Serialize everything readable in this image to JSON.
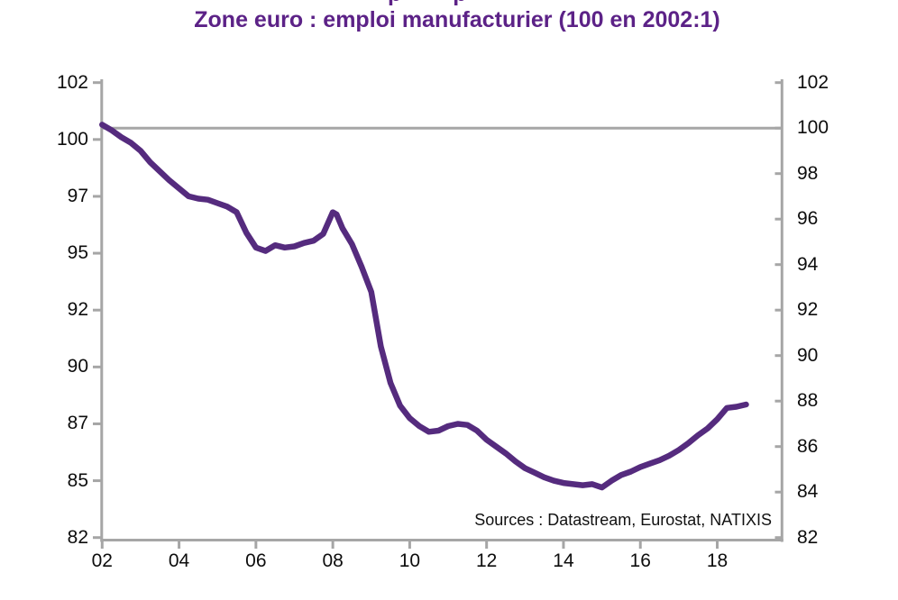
{
  "page": {
    "title": "Zone euro : emploi manufacturier (100 en 2002:1)",
    "clipped_title_fragment": "p p",
    "sources_note": "Sources : Datastream, Eurostat, NATIXIS"
  },
  "colors": {
    "title": "#5c2287",
    "line": "#552b7e",
    "axis": "#a6a6a6",
    "reference_line": "#a6a6a6",
    "tick_label": "#0d0d0d"
  },
  "chart_data": {
    "type": "line",
    "title": "Zone euro : emploi manufacturier (100 en 2002:1)",
    "xlabel": "",
    "ylabel": "",
    "xlim": [
      2002,
      2019.7
    ],
    "ylim": [
      82,
      102
    ],
    "grid": false,
    "legend": "none",
    "reference_line_y": 100,
    "x_axis": {
      "tick_years": [
        2002,
        2004,
        2006,
        2008,
        2010,
        2012,
        2014,
        2016,
        2018
      ],
      "tick_labels": [
        "02",
        "04",
        "06",
        "08",
        "10",
        "12",
        "14",
        "16",
        "18"
      ]
    },
    "left_axis": {
      "tick_labels": [
        "102",
        "100",
        "97",
        "95",
        "92",
        "90",
        "87",
        "85",
        "82"
      ],
      "tick_positions": [
        102,
        99.5,
        97,
        94.5,
        92,
        89.5,
        87,
        84.5,
        82
      ]
    },
    "right_axis": {
      "tick_labels": [
        "102",
        "100",
        "98",
        "96",
        "94",
        "92",
        "90",
        "88",
        "86",
        "84",
        "82"
      ],
      "tick_positions": [
        102,
        100,
        98,
        96,
        94,
        92,
        90,
        88,
        86,
        84,
        82
      ]
    },
    "series": [
      {
        "name": "Zone euro : emploi manufacturier (100 en 2002:1)",
        "points": [
          [
            2002.0,
            100.15
          ],
          [
            2002.25,
            99.9
          ],
          [
            2002.5,
            99.6
          ],
          [
            2002.75,
            99.35
          ],
          [
            2003.0,
            99.0
          ],
          [
            2003.25,
            98.5
          ],
          [
            2003.5,
            98.1
          ],
          [
            2003.75,
            97.7
          ],
          [
            2004.0,
            97.35
          ],
          [
            2004.25,
            97.0
          ],
          [
            2004.5,
            96.9
          ],
          [
            2004.75,
            96.85
          ],
          [
            2005.0,
            96.7
          ],
          [
            2005.25,
            96.55
          ],
          [
            2005.5,
            96.3
          ],
          [
            2005.75,
            95.4
          ],
          [
            2006.0,
            94.75
          ],
          [
            2006.25,
            94.6
          ],
          [
            2006.5,
            94.85
          ],
          [
            2006.75,
            94.75
          ],
          [
            2007.0,
            94.8
          ],
          [
            2007.25,
            94.95
          ],
          [
            2007.5,
            95.05
          ],
          [
            2007.75,
            95.35
          ],
          [
            2008.0,
            96.3
          ],
          [
            2008.1,
            96.2
          ],
          [
            2008.25,
            95.6
          ],
          [
            2008.5,
            94.9
          ],
          [
            2008.75,
            93.9
          ],
          [
            2009.0,
            92.8
          ],
          [
            2009.25,
            90.4
          ],
          [
            2009.5,
            88.8
          ],
          [
            2009.75,
            87.8
          ],
          [
            2010.0,
            87.25
          ],
          [
            2010.25,
            86.9
          ],
          [
            2010.5,
            86.65
          ],
          [
            2010.75,
            86.7
          ],
          [
            2011.0,
            86.9
          ],
          [
            2011.25,
            87.0
          ],
          [
            2011.5,
            86.95
          ],
          [
            2011.75,
            86.7
          ],
          [
            2012.0,
            86.3
          ],
          [
            2012.25,
            86.0
          ],
          [
            2012.5,
            85.7
          ],
          [
            2012.75,
            85.35
          ],
          [
            2013.0,
            85.05
          ],
          [
            2013.25,
            84.85
          ],
          [
            2013.5,
            84.65
          ],
          [
            2013.75,
            84.5
          ],
          [
            2014.0,
            84.4
          ],
          [
            2014.25,
            84.35
          ],
          [
            2014.5,
            84.3
          ],
          [
            2014.75,
            84.35
          ],
          [
            2015.0,
            84.2
          ],
          [
            2015.25,
            84.5
          ],
          [
            2015.5,
            84.75
          ],
          [
            2015.75,
            84.9
          ],
          [
            2016.0,
            85.1
          ],
          [
            2016.25,
            85.25
          ],
          [
            2016.5,
            85.4
          ],
          [
            2016.75,
            85.6
          ],
          [
            2017.0,
            85.85
          ],
          [
            2017.25,
            86.15
          ],
          [
            2017.5,
            86.5
          ],
          [
            2017.75,
            86.8
          ],
          [
            2018.0,
            87.2
          ],
          [
            2018.25,
            87.7
          ],
          [
            2018.5,
            87.75
          ],
          [
            2018.75,
            87.85
          ]
        ]
      }
    ]
  }
}
